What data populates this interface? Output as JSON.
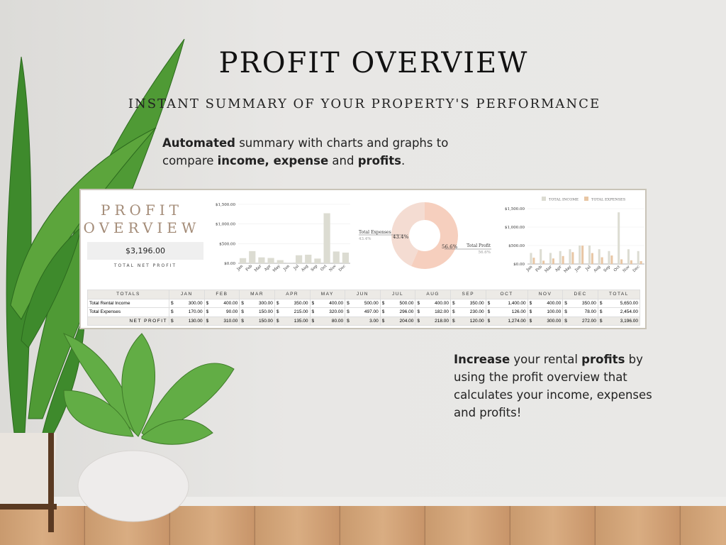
{
  "title": "PROFIT OVERVIEW",
  "subtitle": "INSTANT SUMMARY OF YOUR PROPERTY'S PERFORMANCE",
  "para1": {
    "b1": "Automated",
    "t1": " summary with charts and graphs to compare ",
    "b2": "income, expense",
    "t2": " and ",
    "b3": "profits",
    "t3": "."
  },
  "para2": {
    "b1": "Increase",
    "t1": " your rental ",
    "b2": "profits",
    "t2": " by using the profit overview that calculates your income, expenses and profits!"
  },
  "sheet": {
    "heading": "PROFIT OVERVIEW",
    "net_profit_value": "$3,196.00",
    "net_profit_label": "TOTAL NET PROFIT",
    "table": {
      "headers": [
        "TOTALS",
        "JAN",
        "FEB",
        "MAR",
        "APR",
        "MAY",
        "JUN",
        "JUL",
        "AUG",
        "SEP",
        "OCT",
        "NOV",
        "DEC",
        "TOTAL"
      ],
      "currency": "$",
      "rows": [
        {
          "label": "Total Rental Income",
          "values": [
            "300.00",
            "400.00",
            "300.00",
            "350.00",
            "400.00",
            "500.00",
            "500.00",
            "400.00",
            "350.00",
            "1,400.00",
            "400.00",
            "350.00",
            "5,650.00"
          ]
        },
        {
          "label": "Total Expenses",
          "values": [
            "170.00",
            "90.00",
            "150.00",
            "215.00",
            "320.00",
            "497.00",
            "296.00",
            "182.00",
            "230.00",
            "126.00",
            "100.00",
            "78.00",
            "2,454.00"
          ]
        },
        {
          "label": "NET PROFIT",
          "values": [
            "130.00",
            "310.00",
            "150.00",
            "135.00",
            "80.00",
            "3.00",
            "204.00",
            "218.00",
            "120.00",
            "1,274.00",
            "300.00",
            "272.00",
            "3,196.00"
          ]
        }
      ]
    }
  },
  "chart_data": [
    {
      "type": "bar",
      "categories": [
        "Jan",
        "Feb",
        "Mar",
        "Apr",
        "May",
        "Jun",
        "Jul",
        "Aug",
        "Sep",
        "Oct",
        "Nov",
        "Dec"
      ],
      "values": [
        130,
        310,
        150,
        135,
        80,
        3,
        204,
        218,
        120,
        1274,
        300,
        272
      ],
      "yticks": [
        "$0.00",
        "$500.00",
        "$1,000.00",
        "$1,500.00"
      ],
      "ylim": [
        0,
        1500
      ],
      "color": "#dcdcd2",
      "grid": true
    },
    {
      "type": "pie",
      "donut": true,
      "slices": [
        {
          "name": "Total Expenses",
          "value": 43.4,
          "label": "43.4%",
          "color": "#f4dcd2"
        },
        {
          "name": "Total Profit",
          "value": 56.6,
          "label": "56.6%",
          "color": "#f6cfbe"
        }
      ]
    },
    {
      "type": "bar",
      "categories": [
        "Jan",
        "Feb",
        "Mar",
        "Apr",
        "May",
        "Jun",
        "Jul",
        "Aug",
        "Sep",
        "Oct",
        "Nov",
        "Dec"
      ],
      "series": [
        {
          "name": "TOTAL INCOME",
          "values": [
            300,
            400,
            300,
            350,
            400,
            500,
            500,
            400,
            350,
            1400,
            400,
            350
          ],
          "color": "#dcdcd2"
        },
        {
          "name": "TOTAL EXPENSES",
          "values": [
            170,
            90,
            150,
            215,
            320,
            497,
            296,
            182,
            230,
            126,
            100,
            78
          ],
          "color": "#e8c6a4"
        }
      ],
      "yticks": [
        "$0.00",
        "$500.00",
        "$1,000.00",
        "$1,500.00"
      ],
      "ylim": [
        0,
        1500
      ],
      "legend": "top",
      "grid": true
    }
  ]
}
